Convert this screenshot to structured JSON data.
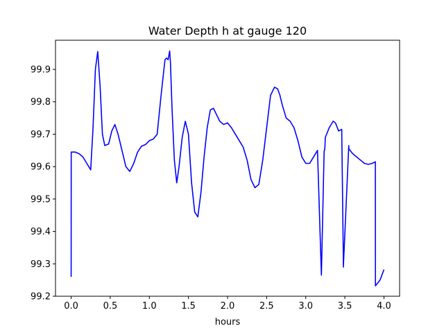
{
  "chart_data": {
    "type": "line",
    "title": "Water Depth h at gauge 120",
    "xlabel": "hours",
    "ylabel": "",
    "xlim": [
      -0.2,
      4.2
    ],
    "ylim": [
      99.2,
      99.99
    ],
    "xticks": [
      0.0,
      0.5,
      1.0,
      1.5,
      2.0,
      2.5,
      3.0,
      3.5,
      4.0
    ],
    "xtick_labels": [
      "0.0",
      "0.5",
      "1.0",
      "1.5",
      "2.0",
      "2.5",
      "3.0",
      "3.5",
      "4.0"
    ],
    "yticks": [
      99.2,
      99.3,
      99.4,
      99.5,
      99.6,
      99.7,
      99.8,
      99.9
    ],
    "ytick_labels": [
      "99.2",
      "99.3",
      "99.4",
      "99.5",
      "99.6",
      "99.7",
      "99.8",
      "99.9"
    ],
    "grid": false,
    "series": [
      {
        "color": "#0000ff",
        "x": [
          0.0,
          0.001,
          0.05,
          0.1,
          0.15,
          0.2,
          0.25,
          0.28,
          0.31,
          0.34,
          0.37,
          0.4,
          0.43,
          0.48,
          0.52,
          0.56,
          0.6,
          0.65,
          0.7,
          0.75,
          0.8,
          0.85,
          0.9,
          0.95,
          1.0,
          1.05,
          1.1,
          1.15,
          1.2,
          1.22,
          1.24,
          1.26,
          1.27,
          1.29,
          1.32,
          1.35,
          1.38,
          1.42,
          1.46,
          1.5,
          1.54,
          1.58,
          1.62,
          1.66,
          1.7,
          1.74,
          1.78,
          1.82,
          1.86,
          1.9,
          1.95,
          2.0,
          2.05,
          2.1,
          2.15,
          2.2,
          2.25,
          2.3,
          2.35,
          2.4,
          2.45,
          2.5,
          2.55,
          2.6,
          2.64,
          2.67,
          2.7,
          2.75,
          2.8,
          2.85,
          2.9,
          2.95,
          3.0,
          3.05,
          3.1,
          3.15,
          3.2,
          3.235,
          3.24,
          3.245,
          3.25,
          3.3,
          3.35,
          3.38,
          3.42,
          3.46,
          3.48,
          3.481,
          3.55,
          3.551,
          3.6,
          3.65,
          3.7,
          3.75,
          3.8,
          3.85,
          3.89,
          3.891,
          3.95,
          4.0
        ],
        "y": [
          99.26,
          99.645,
          99.645,
          99.64,
          99.63,
          99.61,
          99.59,
          99.72,
          99.9,
          99.955,
          99.85,
          99.7,
          99.665,
          99.67,
          99.71,
          99.73,
          99.7,
          99.65,
          99.6,
          99.585,
          99.61,
          99.645,
          99.663,
          99.668,
          99.68,
          99.685,
          99.7,
          99.82,
          99.93,
          99.935,
          99.93,
          99.957,
          99.92,
          99.78,
          99.62,
          99.55,
          99.6,
          99.69,
          99.74,
          99.7,
          99.55,
          99.46,
          99.445,
          99.52,
          99.63,
          99.72,
          99.775,
          99.78,
          99.76,
          99.74,
          99.73,
          99.735,
          99.72,
          99.7,
          99.68,
          99.66,
          99.62,
          99.56,
          99.535,
          99.545,
          99.62,
          99.72,
          99.82,
          99.845,
          99.84,
          99.82,
          99.79,
          99.75,
          99.74,
          99.72,
          99.68,
          99.63,
          99.61,
          99.61,
          99.63,
          99.65,
          99.265,
          99.648,
          99.65,
          99.66,
          99.69,
          99.72,
          99.74,
          99.735,
          99.71,
          99.715,
          99.325,
          99.29,
          99.665,
          99.655,
          99.64,
          99.63,
          99.62,
          99.61,
          99.607,
          99.61,
          99.615,
          99.232,
          99.25,
          99.282
        ]
      }
    ]
  }
}
